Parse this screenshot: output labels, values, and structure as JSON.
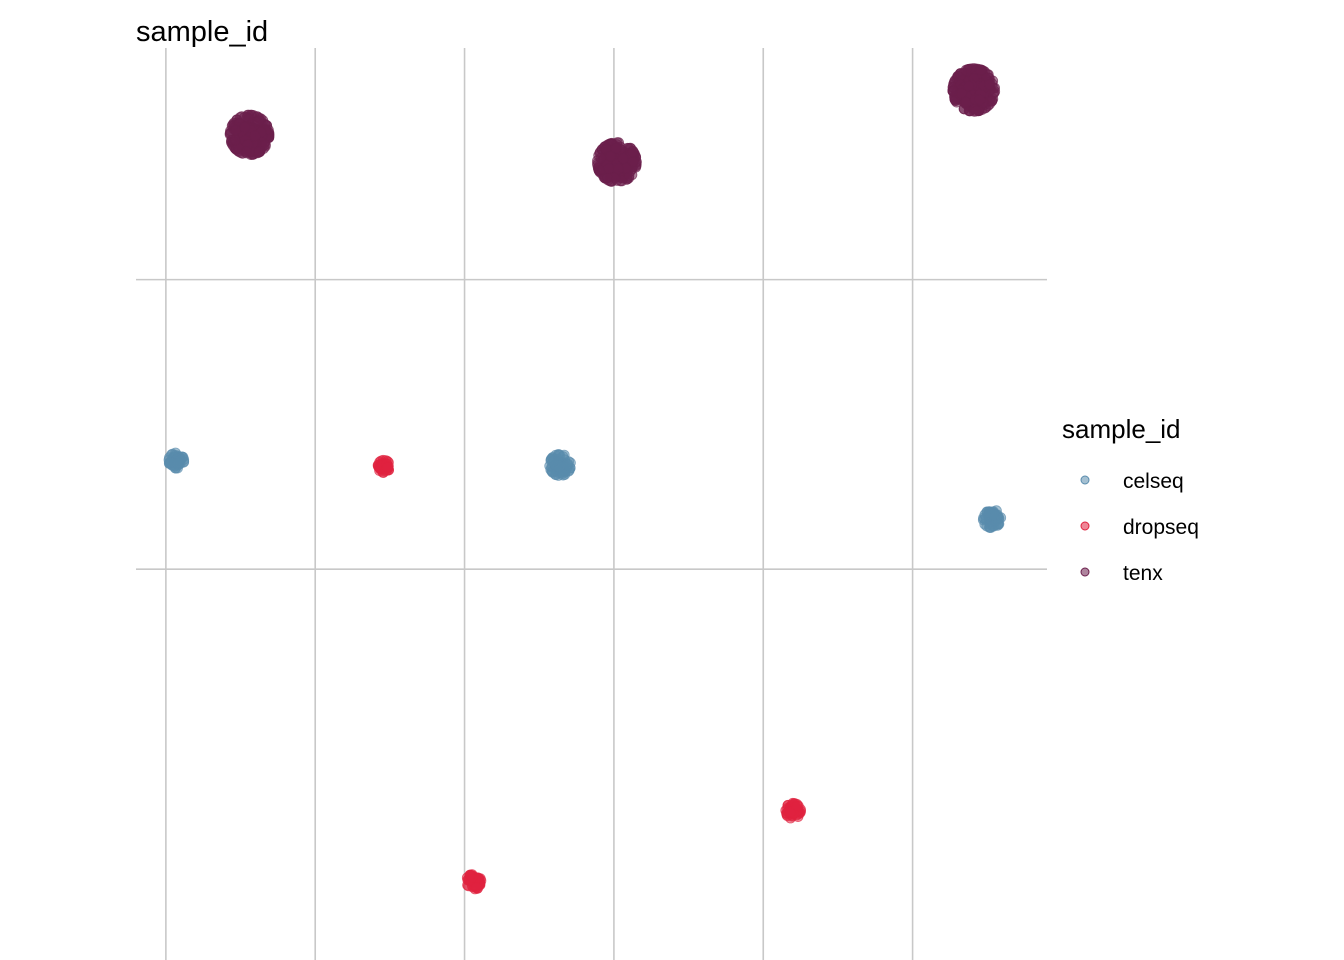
{
  "chart_data": {
    "type": "scatter",
    "title": "sample_id",
    "xlabel": "",
    "ylabel": "",
    "xlim": [
      -0.2,
      5.9
    ],
    "ylim": [
      -3.7,
      2.6
    ],
    "grid": true,
    "x_gridlines": [
      0,
      1,
      2,
      3,
      4,
      5
    ],
    "y_gridlines": [
      -1,
      1
    ],
    "legend": {
      "title": "sample_id",
      "placement": "right",
      "entries": [
        "celseq",
        "dropseq",
        "tenx"
      ]
    },
    "colors": {
      "celseq": "#5a8cad",
      "dropseq": "#e0223f",
      "tenx": "#6b1f4c"
    },
    "series": [
      {
        "name": "celseq",
        "clusters": [
          {
            "x": 0.07,
            "y": -0.25,
            "spread": 0.05,
            "n": 60
          },
          {
            "x": 2.64,
            "y": -0.28,
            "spread": 0.07,
            "n": 80
          },
          {
            "x": 5.53,
            "y": -0.65,
            "spread": 0.06,
            "n": 70
          }
        ]
      },
      {
        "name": "dropseq",
        "clusters": [
          {
            "x": 1.46,
            "y": -0.29,
            "spread": 0.04,
            "n": 45
          },
          {
            "x": 2.06,
            "y": -3.16,
            "spread": 0.05,
            "n": 55
          },
          {
            "x": 4.2,
            "y": -2.67,
            "spread": 0.05,
            "n": 50
          }
        ]
      },
      {
        "name": "tenx",
        "clusters": [
          {
            "x": 0.56,
            "y": 2.0,
            "spread": 0.13,
            "n": 260
          },
          {
            "x": 3.02,
            "y": 1.81,
            "spread": 0.13,
            "n": 260
          },
          {
            "x": 5.41,
            "y": 2.31,
            "spread": 0.14,
            "n": 300
          }
        ]
      }
    ]
  }
}
